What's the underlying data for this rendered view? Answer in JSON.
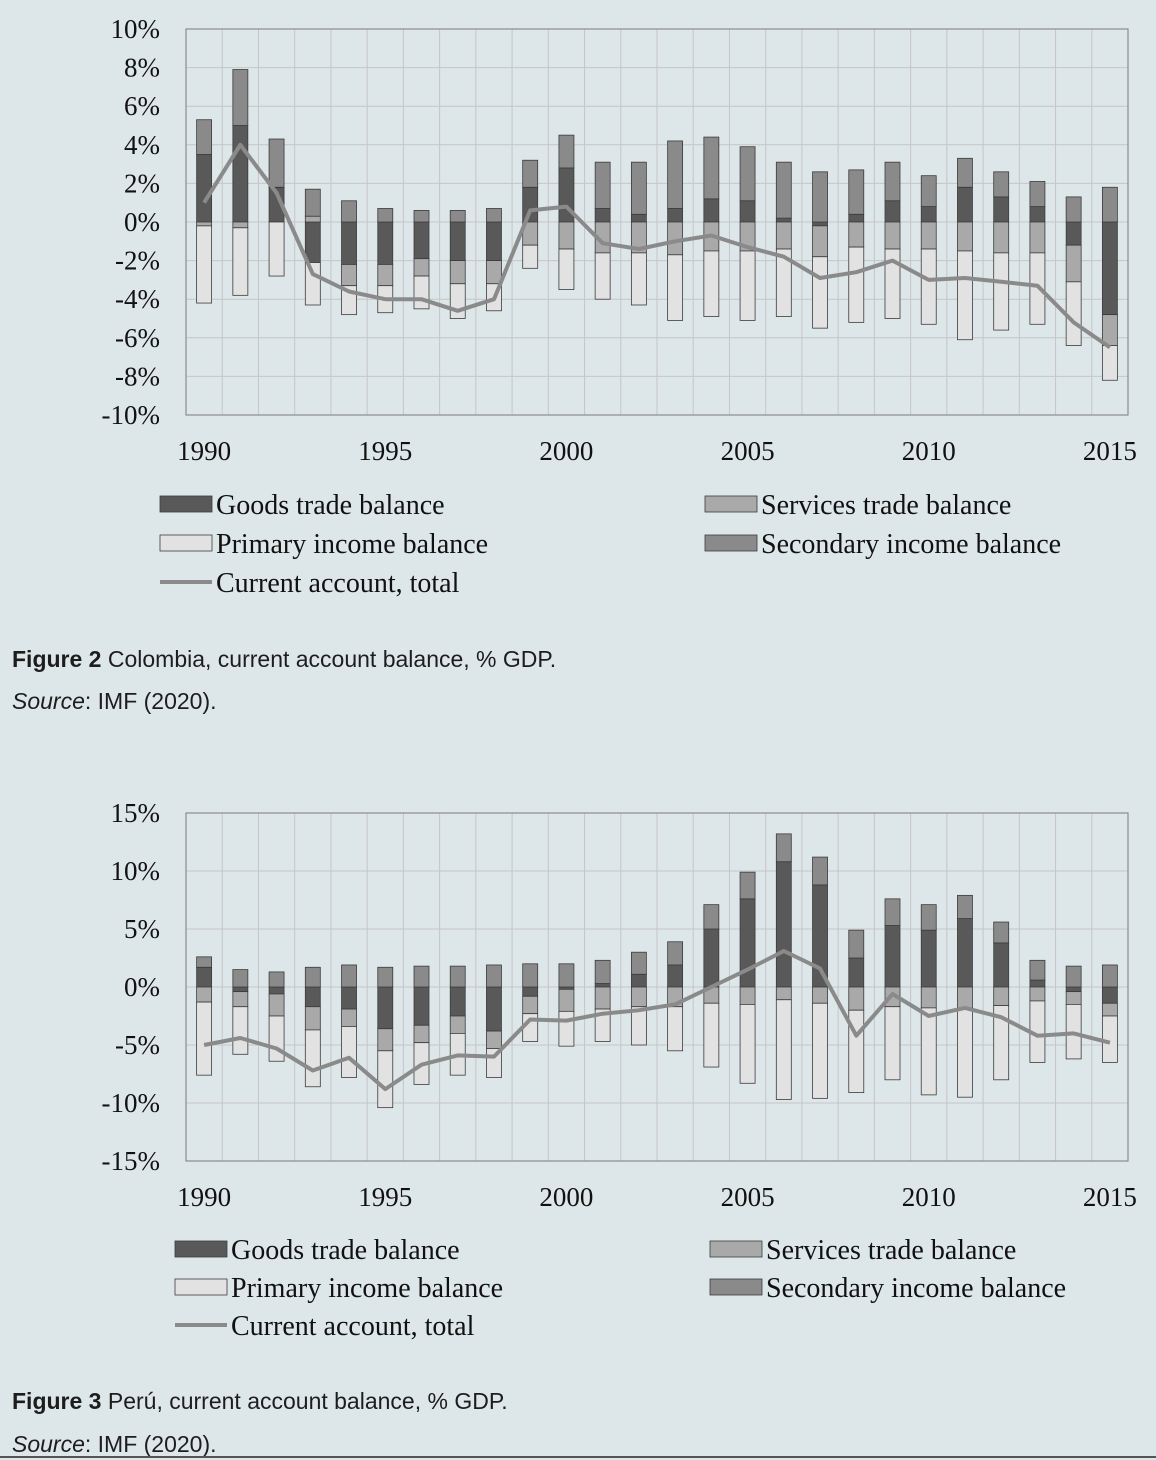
{
  "figures": [
    {
      "caption_label": "Figure 2",
      "caption_text": "Colombia, current account balance, % GDP.",
      "source_label": "Source",
      "source_text": ": IMF (2020)."
    },
    {
      "caption_label": "Figure 3",
      "caption_text": "Perú, current account balance, % GDP.",
      "source_label": "Source",
      "source_text": ": IMF (2020)."
    }
  ],
  "colors": {
    "goods": "#595959",
    "services": "#a9a9a9",
    "primary": "#e2e2e2",
    "secondary": "#8a8a8a",
    "line": "#8a8a8a",
    "grid": "#c6c6c6",
    "axis": "#8c8c8c"
  },
  "chart_data": [
    {
      "type": "bar",
      "stacked": true,
      "title": "",
      "xlabel": "",
      "ylabel": "",
      "x": [
        1990,
        1991,
        1992,
        1993,
        1994,
        1995,
        1996,
        1997,
        1998,
        1999,
        2000,
        2001,
        2002,
        2003,
        2004,
        2005,
        2006,
        2007,
        2008,
        2009,
        2010,
        2011,
        2012,
        2013,
        2014,
        2015
      ],
      "x_tick_labels": [
        "1990",
        "1995",
        "2000",
        "2005",
        "2010",
        "2015"
      ],
      "y_ticks": [
        10,
        8,
        6,
        4,
        2,
        0,
        -2,
        -4,
        -6,
        -8,
        -10
      ],
      "y_tick_labels": [
        "10%",
        "8%",
        "6%",
        "4%",
        "2%",
        "0%",
        "-2%",
        "-4%",
        "-6%",
        "-8%",
        "-10%"
      ],
      "ylim": [
        -10,
        10
      ],
      "grid": true,
      "legend_position": "bottom",
      "series": [
        {
          "name": "Goods trade balance",
          "kind": "bar",
          "values": [
            3.5,
            5.0,
            1.8,
            -2.1,
            -2.2,
            -2.2,
            -1.9,
            -2.0,
            -2.0,
            1.8,
            2.8,
            0.7,
            0.4,
            0.7,
            1.2,
            1.1,
            0.2,
            -0.2,
            0.4,
            1.1,
            0.8,
            1.8,
            1.3,
            0.8,
            -1.2,
            -4.8
          ]
        },
        {
          "name": "Services trade balance",
          "kind": "bar",
          "values": [
            -0.2,
            -0.3,
            0.0,
            0.3,
            -1.1,
            -1.1,
            -0.9,
            -1.2,
            -1.2,
            -1.2,
            -1.4,
            -1.6,
            -1.6,
            -1.7,
            -1.5,
            -1.5,
            -1.4,
            -1.6,
            -1.3,
            -1.4,
            -1.4,
            -1.5,
            -1.6,
            -1.6,
            -1.9,
            -1.6
          ]
        },
        {
          "name": "Primary income balance",
          "kind": "bar",
          "values": [
            -4.0,
            -3.5,
            -2.8,
            -2.2,
            -1.5,
            -1.4,
            -1.7,
            -1.8,
            -1.4,
            -1.2,
            -2.1,
            -2.4,
            -2.7,
            -3.4,
            -3.4,
            -3.6,
            -3.5,
            -3.7,
            -3.9,
            -3.6,
            -3.9,
            -4.6,
            -4.0,
            -3.7,
            -3.3,
            -1.8
          ]
        },
        {
          "name": "Secondary income balance",
          "kind": "bar",
          "values": [
            1.8,
            2.9,
            2.5,
            1.4,
            1.1,
            0.7,
            0.6,
            0.6,
            0.7,
            1.4,
            1.7,
            2.4,
            2.7,
            3.5,
            3.2,
            2.8,
            2.9,
            2.6,
            2.3,
            2.0,
            1.6,
            1.5,
            1.3,
            1.3,
            1.3,
            1.8
          ]
        },
        {
          "name": "Current account, total",
          "kind": "line",
          "values": [
            1.0,
            4.0,
            1.5,
            -2.7,
            -3.6,
            -4.0,
            -4.0,
            -4.6,
            -4.0,
            0.6,
            0.8,
            -1.1,
            -1.4,
            -1.0,
            -0.7,
            -1.3,
            -1.8,
            -2.9,
            -2.6,
            -2.0,
            -3.0,
            -2.9,
            -3.1,
            -3.3,
            -5.2,
            -6.5
          ]
        }
      ]
    },
    {
      "type": "bar",
      "stacked": true,
      "title": "",
      "xlabel": "",
      "ylabel": "",
      "x": [
        1990,
        1991,
        1992,
        1993,
        1994,
        1995,
        1996,
        1997,
        1998,
        1999,
        2000,
        2001,
        2002,
        2003,
        2004,
        2005,
        2006,
        2007,
        2008,
        2009,
        2010,
        2011,
        2012,
        2013,
        2014,
        2015
      ],
      "x_tick_labels": [
        "1990",
        "1995",
        "2000",
        "2005",
        "2010",
        "2015"
      ],
      "y_ticks": [
        15,
        10,
        5,
        0,
        -5,
        -10,
        -15
      ],
      "y_tick_labels": [
        "15%",
        "10%",
        "5%",
        "0%",
        "-5%",
        "-10%",
        "-15%"
      ],
      "ylim": [
        -15,
        15
      ],
      "grid": true,
      "legend_position": "bottom",
      "series": [
        {
          "name": "Goods trade balance",
          "kind": "bar",
          "values": [
            1.7,
            -0.4,
            -0.6,
            -1.7,
            -1.9,
            -3.6,
            -3.3,
            -2.5,
            -3.8,
            -0.8,
            -0.2,
            0.3,
            1.1,
            1.9,
            5.0,
            7.6,
            10.8,
            8.8,
            2.5,
            5.3,
            4.9,
            5.9,
            3.8,
            0.6,
            -0.4,
            -1.4
          ]
        },
        {
          "name": "Services trade balance",
          "kind": "bar",
          "values": [
            -1.3,
            -1.3,
            -1.9,
            -2.0,
            -1.5,
            -1.9,
            -1.5,
            -1.5,
            -1.5,
            -1.5,
            -1.9,
            -1.9,
            -1.7,
            -1.7,
            -1.4,
            -1.5,
            -1.1,
            -1.4,
            -2.0,
            -1.7,
            -1.8,
            -1.8,
            -1.6,
            -1.2,
            -1.1,
            -1.1
          ]
        },
        {
          "name": "Primary income balance",
          "kind": "bar",
          "values": [
            -6.3,
            -4.1,
            -3.9,
            -4.9,
            -4.4,
            -4.9,
            -3.6,
            -3.6,
            -2.5,
            -2.4,
            -3.0,
            -2.8,
            -3.3,
            -3.8,
            -5.5,
            -6.8,
            -8.6,
            -8.2,
            -7.1,
            -6.3,
            -7.5,
            -7.7,
            -6.4,
            -5.3,
            -4.7,
            -4.0
          ]
        },
        {
          "name": "Secondary income balance",
          "kind": "bar",
          "values": [
            0.9,
            1.5,
            1.3,
            1.7,
            1.9,
            1.7,
            1.8,
            1.8,
            1.9,
            2.0,
            2.0,
            2.0,
            1.9,
            2.0,
            2.1,
            2.3,
            2.4,
            2.4,
            2.4,
            2.3,
            2.2,
            2.0,
            1.8,
            1.7,
            1.8,
            1.9
          ]
        },
        {
          "name": "Current account, total",
          "kind": "line",
          "values": [
            -5.0,
            -4.4,
            -5.3,
            -7.2,
            -6.1,
            -8.8,
            -6.7,
            -5.9,
            -6.0,
            -2.8,
            -2.9,
            -2.3,
            -2.0,
            -1.5,
            0.0,
            1.5,
            3.1,
            1.6,
            -4.2,
            -0.6,
            -2.5,
            -1.8,
            -2.6,
            -4.2,
            -4.0,
            -4.8
          ]
        }
      ]
    }
  ]
}
